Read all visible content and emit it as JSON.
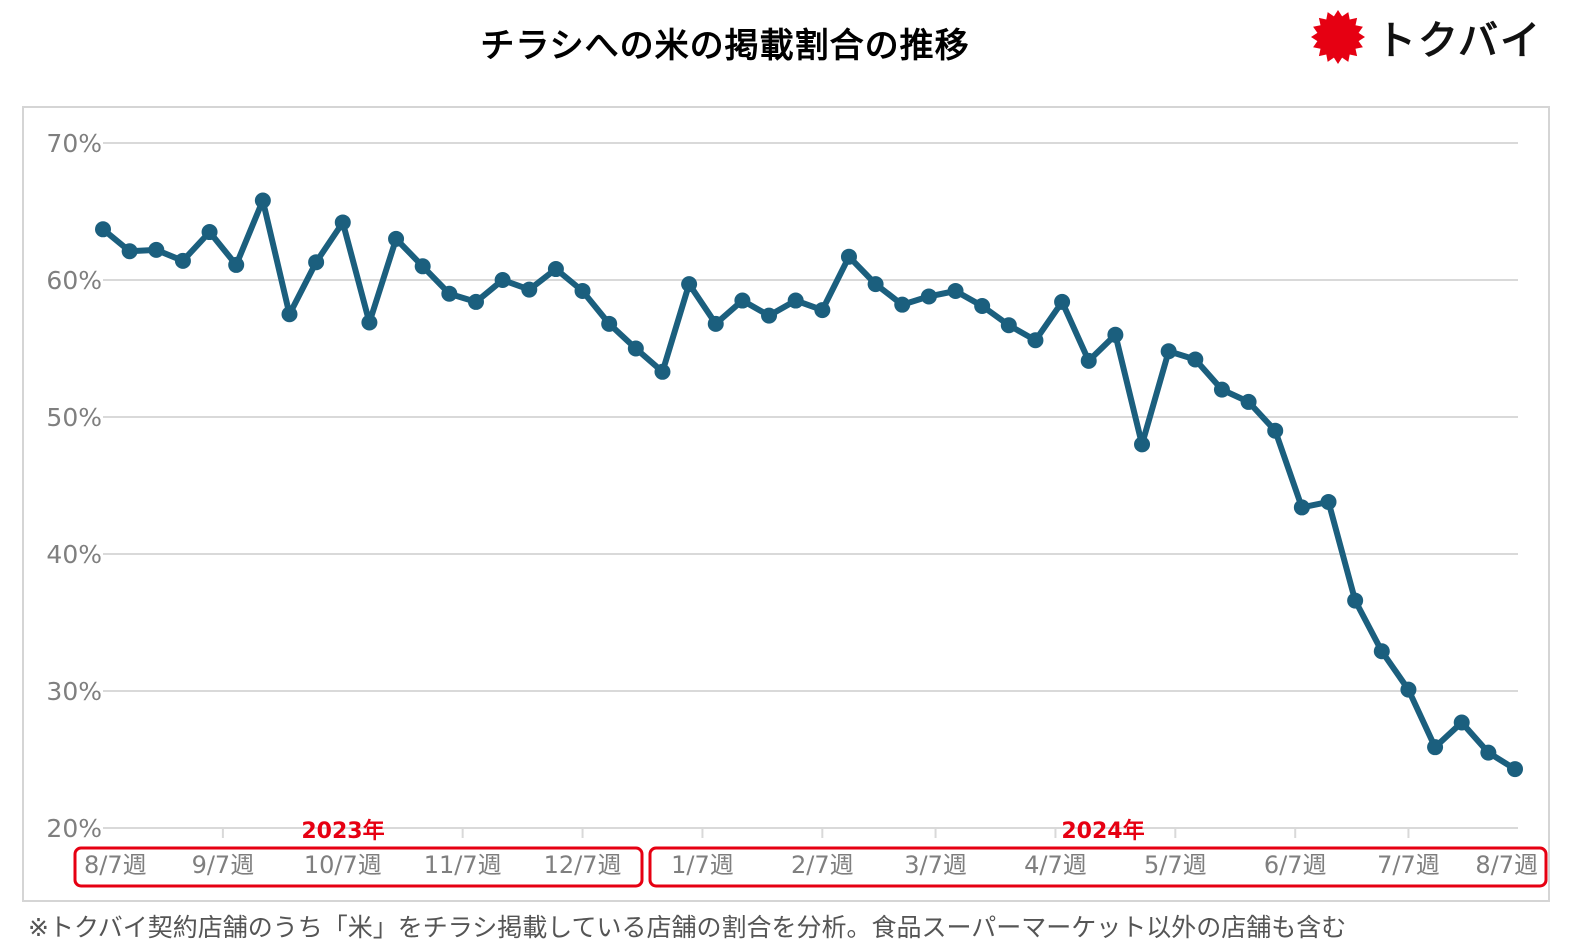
{
  "title": "チラシへの米の掲載割合の推移",
  "logo": {
    "text": "トクバイ",
    "icon": "red-starburst-icon",
    "color": "#e60012"
  },
  "footnote": "※トクバイ契約店舗のうち「米」をチラシ掲載している店舗の割合を分析。食品スーパーマーケット以外の店舗も含む",
  "colors": {
    "line": "#1b5f7e",
    "grid": "#d9d9d9",
    "axis_text": "#7f7f7f",
    "highlight": "#e60012"
  },
  "year_labels": [
    "2023年",
    "2024年"
  ],
  "chart_data": {
    "type": "line",
    "title": "チラシへの米の掲載割合の推移",
    "xlabel": "",
    "ylabel": "",
    "y_ticks": [
      "20%",
      "30%",
      "40%",
      "50%",
      "60%",
      "70%"
    ],
    "ylim": [
      20,
      70
    ],
    "grid": true,
    "x_tick_labels": [
      "8/7週",
      "9/7週",
      "10/7週",
      "11/7週",
      "12/7週",
      "1/7週",
      "2/7週",
      "3/7週",
      "4/7週",
      "5/7週",
      "6/7週",
      "7/7週",
      "8/7週"
    ],
    "x_tick_positions": [
      0,
      4.5,
      9,
      13.5,
      18,
      22.5,
      27,
      31.25,
      35.75,
      40.25,
      44.75,
      49,
      53
    ],
    "series": [
      {
        "values": [
          63.7,
          62.1,
          62.2,
          61.4,
          63.5,
          61.1,
          65.8,
          57.5,
          61.3,
          64.2,
          56.9,
          63.0,
          61.0,
          59.0,
          58.4,
          60.0,
          59.3,
          60.8,
          59.2,
          56.8,
          55.0,
          53.3,
          59.7,
          56.8,
          58.5,
          57.4,
          58.5,
          57.8,
          61.7,
          59.7,
          58.2,
          58.8,
          59.2,
          58.1,
          56.7,
          55.6,
          58.4,
          54.1,
          56.0,
          48.0,
          54.8,
          54.2,
          52.0,
          51.1,
          49.0,
          43.4,
          43.8,
          36.6,
          32.9,
          30.1,
          25.9,
          27.7,
          25.5,
          24.3
        ]
      }
    ]
  }
}
